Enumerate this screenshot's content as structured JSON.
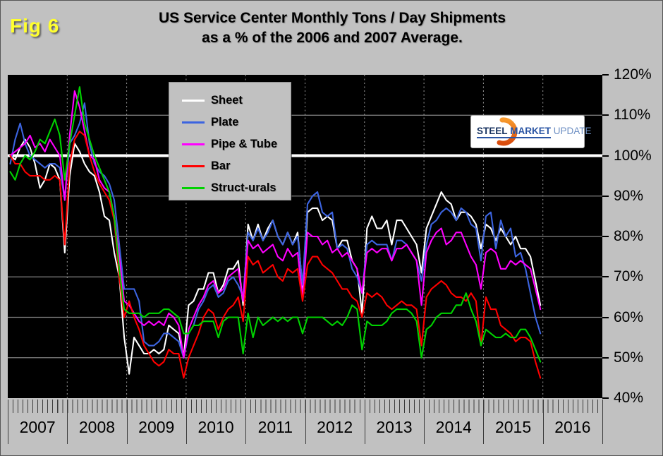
{
  "figure_label": "Fig 6",
  "title": {
    "line1": "US Service Center Monthly Tons / Day Shipments",
    "line2": "as a % of the 2006 and 2007 Average."
  },
  "logo": {
    "word1": "STEEL",
    "word2": "MARKET",
    "word3": "UPDATE"
  },
  "colors": {
    "page_bg": "#c1c1c1",
    "plot_bg": "#000000",
    "gridline": "#828282",
    "year_dotted": "#9b9b9b",
    "reference_line": "#ffffff",
    "fig_label": "#ffff2e",
    "logo_orange": "#ea660f"
  },
  "chart_data": {
    "type": "line",
    "title": "US Service Center Monthly Tons / Day Shipments as a % of the 2006 and 2007 Average.",
    "x_unit": "month",
    "x_range": [
      "2007-01",
      "2015-12"
    ],
    "x_year_labels": [
      "2007",
      "2008",
      "2009",
      "2010",
      "2011",
      "2012",
      "2013",
      "2014",
      "2015",
      "2016"
    ],
    "y_tick_labels": [
      "120%",
      "110%",
      "100%",
      "90%",
      "80%",
      "70%",
      "60%",
      "50%",
      "40%"
    ],
    "y_tick_values": [
      120,
      110,
      100,
      90,
      80,
      70,
      60,
      50,
      40
    ],
    "ylim": [
      40,
      120
    ],
    "reference_line_value": 100,
    "grid": "horizontal solid every 10%, vertical dotted at year boundaries",
    "legend_position": "inside top-left",
    "series": [
      {
        "name": "Sheet",
        "color": "#ffffff",
        "values": [
          100,
          99,
          102,
          104,
          102,
          98,
          92,
          94,
          98,
          97,
          94,
          76,
          95,
          103,
          101,
          98,
          96,
          95,
          91,
          85,
          84,
          76,
          70,
          55,
          46,
          55,
          53,
          51,
          51,
          52,
          51,
          52,
          58,
          57,
          56,
          50,
          63,
          64,
          67,
          67,
          71,
          71,
          66,
          68,
          72,
          72,
          74,
          63,
          83,
          79,
          83,
          79,
          82,
          84,
          80,
          78,
          81,
          78,
          81,
          67,
          86,
          87,
          87,
          84,
          85,
          84,
          77,
          79,
          79,
          74,
          72,
          61,
          82,
          85,
          82,
          82,
          84,
          78,
          84,
          84,
          82,
          80,
          78,
          71,
          82,
          85,
          88,
          91,
          89,
          88,
          84,
          86,
          86,
          85,
          83,
          77,
          83,
          82,
          79,
          82,
          80,
          78,
          80,
          77,
          77,
          75,
          69,
          63
        ]
      },
      {
        "name": "Plate",
        "color": "#3c64e0",
        "values": [
          98,
          104,
          108,
          103,
          100,
          99,
          98,
          97,
          98,
          98,
          97,
          89,
          103,
          105,
          108,
          113,
          103,
          98,
          96,
          95,
          93,
          89,
          78,
          67,
          67,
          67,
          64,
          54,
          53,
          53,
          54,
          56,
          56,
          55,
          54,
          50,
          56,
          58,
          62,
          64,
          67,
          68,
          65,
          66,
          69,
          70,
          68,
          65,
          81,
          79,
          82,
          79,
          81,
          84,
          80,
          78,
          81,
          78,
          80,
          68,
          88,
          90,
          91,
          86,
          85,
          86,
          77,
          78,
          77,
          72,
          70,
          66,
          78,
          79,
          78,
          78,
          78,
          74,
          79,
          79,
          78,
          76,
          74,
          69,
          78,
          83,
          84,
          86,
          87,
          86,
          84,
          87,
          86,
          83,
          82,
          74,
          85,
          86,
          77,
          84,
          80,
          82,
          75,
          76,
          72,
          66,
          60,
          56
        ]
      },
      {
        "name": "Pipe & Tube",
        "color": "#ff00ff",
        "values": [
          100,
          101,
          102,
          103,
          105,
          102,
          103,
          101,
          104,
          102,
          100,
          89,
          105,
          116,
          112,
          106,
          100,
          99,
          94,
          92,
          91,
          85,
          75,
          64,
          63,
          61,
          59,
          58,
          59,
          58,
          59,
          58,
          61,
          60,
          58,
          50,
          57,
          60,
          63,
          65,
          68,
          69,
          66,
          67,
          70,
          71,
          72,
          64,
          79,
          77,
          78,
          76,
          77,
          78,
          75,
          74,
          77,
          75,
          76,
          65,
          81,
          80,
          80,
          78,
          79,
          76,
          77,
          75,
          76,
          74,
          72,
          66,
          76,
          77,
          76,
          77,
          77,
          74,
          77,
          77,
          78,
          76,
          74,
          63,
          76,
          79,
          81,
          82,
          78,
          79,
          81,
          81,
          78,
          75,
          73,
          67,
          76,
          77,
          76,
          72,
          72,
          74,
          73,
          74,
          73,
          72,
          67,
          62
        ]
      },
      {
        "name": "Bar",
        "color": "#ff0000",
        "values": [
          100,
          98,
          98,
          96,
          95,
          95,
          95,
          94,
          94,
          95,
          94,
          78,
          98,
          104,
          106,
          105,
          100,
          96,
          93,
          91,
          89,
          84,
          70,
          60,
          64,
          60,
          57,
          53,
          51,
          49,
          48,
          49,
          52,
          51,
          51,
          45,
          50,
          53,
          56,
          60,
          62,
          61,
          57,
          60,
          62,
          63,
          65,
          59,
          75,
          73,
          74,
          71,
          72,
          73,
          70,
          69,
          72,
          71,
          72,
          64,
          73,
          75,
          75,
          73,
          72,
          71,
          69,
          67,
          67,
          65,
          64,
          60,
          66,
          65,
          66,
          65,
          63,
          62,
          63,
          64,
          63,
          63,
          62,
          53,
          65,
          67,
          68,
          69,
          68,
          66,
          65,
          65,
          64,
          66,
          64,
          53,
          65,
          62,
          62,
          58,
          57,
          56,
          54,
          55,
          55,
          54,
          49,
          45
        ]
      },
      {
        "name": "Struct-urals",
        "color": "#00d200",
        "values": [
          96,
          94,
          98,
          100,
          99,
          101,
          104,
          103,
          106,
          109,
          105,
          94,
          103,
          110,
          117,
          108,
          104,
          100,
          97,
          94,
          91,
          85,
          72,
          62,
          61,
          61,
          61,
          60,
          61,
          61,
          61,
          62,
          62,
          61,
          60,
          56,
          56,
          58,
          58,
          59,
          59,
          59,
          55,
          59,
          60,
          60,
          60,
          51,
          61,
          55,
          60,
          58,
          59,
          60,
          59,
          60,
          59,
          60,
          60,
          56,
          60,
          60,
          60,
          60,
          59,
          58,
          59,
          58,
          60,
          63,
          62,
          52,
          59,
          58,
          58,
          58,
          59,
          61,
          62,
          62,
          62,
          61,
          59,
          50,
          57,
          58,
          60,
          61,
          61,
          61,
          63,
          63,
          66,
          62,
          59,
          53,
          57,
          56,
          55,
          55,
          56,
          55,
          55,
          57,
          57,
          55,
          52,
          49
        ]
      }
    ]
  }
}
